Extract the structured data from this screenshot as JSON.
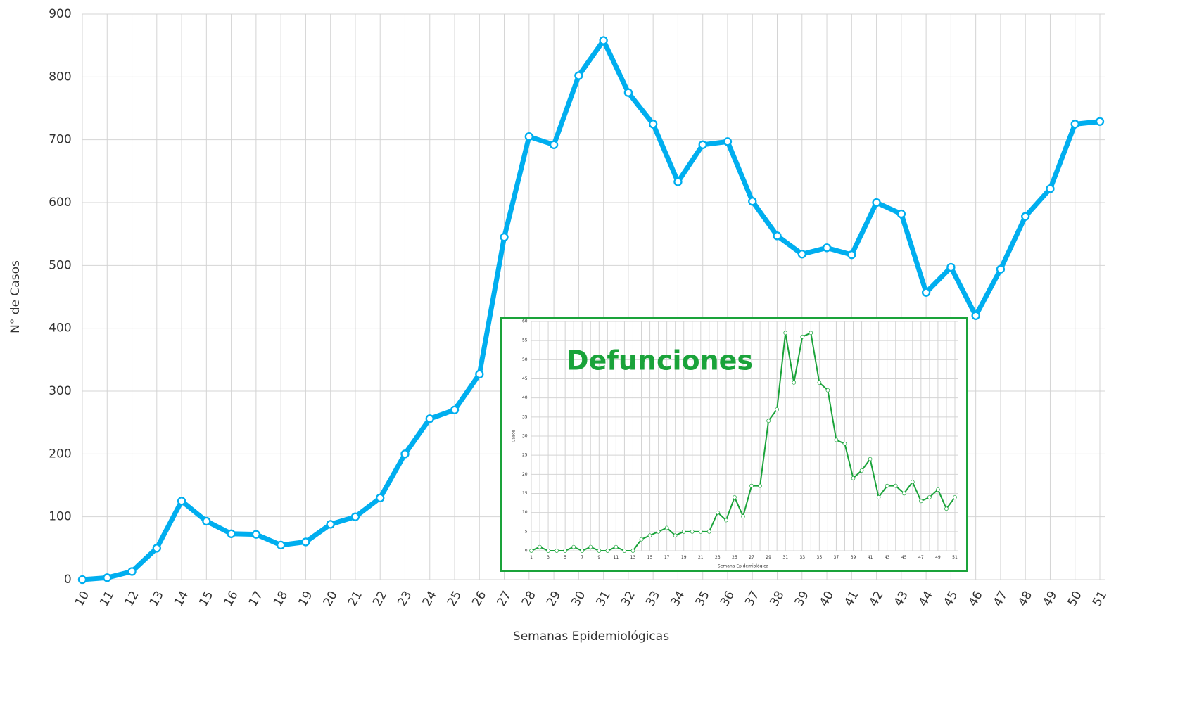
{
  "chart_data": [
    {
      "type": "line",
      "x_label": "Semanas Epidemiológicas",
      "y_label": "N° de Casos",
      "categories": [
        "10",
        "11",
        "12",
        "13",
        "14",
        "15",
        "16",
        "17",
        "18",
        "19",
        "20",
        "21",
        "22",
        "23",
        "24",
        "25",
        "26",
        "27",
        "28",
        "29",
        "30",
        "31",
        "32",
        "33",
        "34",
        "35",
        "36",
        "37",
        "38",
        "39",
        "40",
        "41",
        "42",
        "43",
        "44",
        "45",
        "46",
        "47",
        "48",
        "49",
        "50",
        "51"
      ],
      "series": [
        {
          "name": "Casos",
          "color": "#00aeef",
          "values": [
            0,
            3,
            13,
            50,
            125,
            93,
            73,
            72,
            55,
            60,
            88,
            100,
            130,
            200,
            256,
            270,
            327,
            545,
            705,
            692,
            802,
            858,
            775,
            725,
            633,
            692,
            697,
            602,
            547,
            518,
            528,
            517,
            600,
            582,
            457,
            497,
            420,
            494,
            578,
            622,
            725,
            729
          ]
        }
      ],
      "ylim": [
        0,
        900
      ],
      "yticks": [
        0,
        100,
        200,
        300,
        400,
        500,
        600,
        700,
        800,
        900
      ],
      "grid": true
    },
    {
      "type": "line",
      "title": "Defunciones",
      "x_label": "Semana Epidemiológica",
      "y_label": "Casos",
      "categories": [
        "1",
        null,
        "3",
        null,
        "5",
        null,
        "7",
        null,
        "9",
        null,
        "11",
        null,
        "13",
        null,
        "15",
        null,
        "17",
        null,
        "19",
        null,
        "21",
        null,
        "23",
        null,
        "25",
        null,
        "27",
        null,
        "29",
        null,
        "31",
        null,
        "33",
        null,
        "35",
        null,
        "37",
        null,
        "39",
        null,
        "41",
        null,
        "43",
        null,
        "45",
        null,
        "47",
        null,
        "49",
        null,
        "51"
      ],
      "series": [
        {
          "name": "Defunciones",
          "color": "#1aa33a",
          "values": [
            0,
            1,
            0,
            0,
            0,
            1,
            0,
            1,
            0,
            0,
            1,
            0,
            0,
            3,
            4,
            5,
            6,
            4,
            5,
            5,
            5,
            5,
            10,
            8,
            14,
            9,
            17,
            17,
            34,
            37,
            57,
            44,
            56,
            57,
            44,
            42,
            29,
            28,
            19,
            21,
            24,
            14,
            17,
            17,
            15,
            18,
            13,
            14,
            16,
            11,
            14
          ]
        }
      ],
      "ylim": [
        0,
        60
      ],
      "yticks": [
        0,
        5,
        10,
        15,
        20,
        25,
        30,
        35,
        40,
        45,
        50,
        55,
        60
      ],
      "grid": true
    }
  ]
}
